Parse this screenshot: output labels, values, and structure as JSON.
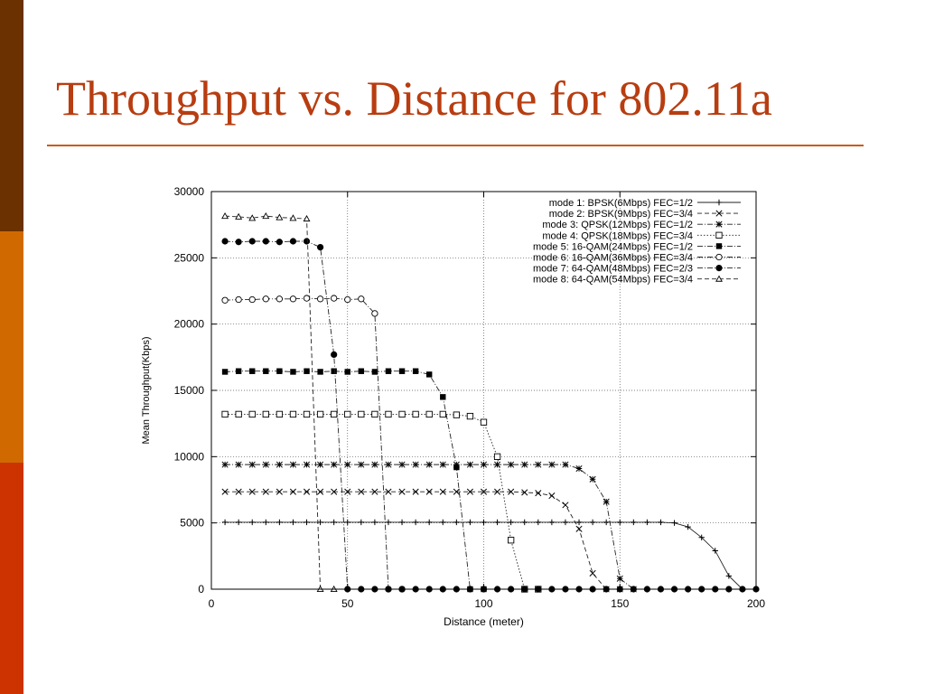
{
  "slide": {
    "title": "Throughput vs. Distance for 802.11a"
  },
  "colors": {
    "title": "#b83d10",
    "rule": "#c85a1a",
    "sidebar": [
      "#6b3100",
      "#d06a00",
      "#cc3300"
    ]
  },
  "chart_data": {
    "type": "line",
    "title": "",
    "xlabel": "Distance (meter)",
    "ylabel": "Mean Throughput(Kbps)",
    "xlim": [
      0,
      200
    ],
    "ylim": [
      0,
      30000
    ],
    "xticks": [
      0,
      50,
      100,
      150,
      200
    ],
    "yticks": [
      0,
      5000,
      10000,
      15000,
      20000,
      25000,
      30000
    ],
    "grid": true,
    "legend_position": "top-right",
    "series": [
      {
        "name": "mode 1: BPSK(6Mbps) FEC=1/2",
        "marker": "plus",
        "dash": "solid",
        "x": [
          5,
          10,
          15,
          20,
          25,
          30,
          35,
          40,
          45,
          50,
          55,
          60,
          65,
          70,
          75,
          80,
          85,
          90,
          95,
          100,
          105,
          110,
          115,
          120,
          125,
          130,
          135,
          140,
          145,
          150,
          155,
          160,
          165,
          170,
          175,
          180,
          185,
          190,
          195
        ],
        "y": [
          5050,
          5050,
          5050,
          5050,
          5050,
          5050,
          5050,
          5050,
          5050,
          5050,
          5050,
          5050,
          5050,
          5050,
          5050,
          5050,
          5050,
          5050,
          5050,
          5050,
          5050,
          5050,
          5050,
          5050,
          5050,
          5050,
          5050,
          5050,
          5050,
          5050,
          5050,
          5050,
          5050,
          5000,
          4700,
          3900,
          2900,
          1000,
          0
        ]
      },
      {
        "name": "mode 2: BPSK(9Mbps) FEC=3/4",
        "marker": "x",
        "dash": "dash",
        "x": [
          5,
          10,
          15,
          20,
          25,
          30,
          35,
          40,
          45,
          50,
          55,
          60,
          65,
          70,
          75,
          80,
          85,
          90,
          95,
          100,
          105,
          110,
          115,
          120,
          125,
          130,
          135,
          140,
          145,
          150
        ],
        "y": [
          7350,
          7350,
          7350,
          7350,
          7350,
          7350,
          7350,
          7350,
          7350,
          7350,
          7350,
          7350,
          7350,
          7350,
          7350,
          7350,
          7350,
          7350,
          7350,
          7350,
          7350,
          7350,
          7300,
          7250,
          7050,
          6350,
          4550,
          1200,
          0,
          0
        ]
      },
      {
        "name": "mode 3: QPSK(12Mbps) FEC=1/2",
        "marker": "asterisk",
        "dash": "dashdot",
        "x": [
          5,
          10,
          15,
          20,
          25,
          30,
          35,
          40,
          45,
          50,
          55,
          60,
          65,
          70,
          75,
          80,
          85,
          90,
          95,
          100,
          105,
          110,
          115,
          120,
          125,
          130,
          135,
          140,
          145,
          150,
          155
        ],
        "y": [
          9400,
          9400,
          9400,
          9400,
          9400,
          9400,
          9400,
          9400,
          9400,
          9400,
          9400,
          9400,
          9400,
          9400,
          9400,
          9400,
          9400,
          9400,
          9400,
          9400,
          9400,
          9400,
          9400,
          9400,
          9400,
          9400,
          9100,
          8300,
          6600,
          800,
          0
        ]
      },
      {
        "name": "mode 4: QPSK(18Mbps) FEC=3/4",
        "marker": "open-square",
        "dash": "dot",
        "x": [
          5,
          10,
          15,
          20,
          25,
          30,
          35,
          40,
          45,
          50,
          55,
          60,
          65,
          70,
          75,
          80,
          85,
          90,
          95,
          100,
          105,
          110,
          115,
          120
        ],
        "y": [
          13200,
          13200,
          13200,
          13200,
          13200,
          13200,
          13200,
          13200,
          13200,
          13200,
          13200,
          13200,
          13200,
          13200,
          13200,
          13200,
          13200,
          13150,
          13050,
          12600,
          10000,
          3700,
          0,
          0
        ]
      },
      {
        "name": "mode 5: 16-QAM(24Mbps) FEC=1/2",
        "marker": "filled-square",
        "dash": "dashdot",
        "x": [
          5,
          10,
          15,
          20,
          25,
          30,
          35,
          40,
          45,
          50,
          55,
          60,
          65,
          70,
          75,
          80,
          85,
          90,
          95,
          100
        ],
        "y": [
          16400,
          16450,
          16450,
          16450,
          16450,
          16400,
          16450,
          16400,
          16450,
          16400,
          16450,
          16400,
          16450,
          16450,
          16450,
          16200,
          14500,
          9200,
          0,
          0
        ]
      },
      {
        "name": "mode 6: 16-QAM(36Mbps) FEC=3/4",
        "marker": "open-circle",
        "dash": "dashdot",
        "x": [
          5,
          10,
          15,
          20,
          25,
          30,
          35,
          40,
          45,
          50,
          55,
          60,
          65,
          70
        ],
        "y": [
          21800,
          21850,
          21850,
          21900,
          21900,
          21900,
          21950,
          21900,
          21950,
          21850,
          21900,
          20800,
          0,
          0
        ]
      },
      {
        "name": "mode 7: 64-QAM(48Mbps) FEC=2/3",
        "marker": "filled-circle",
        "dash": "dashdot",
        "x": [
          5,
          10,
          15,
          20,
          25,
          30,
          35,
          40,
          45,
          50,
          55,
          60,
          65,
          70,
          75,
          80,
          85,
          90,
          95,
          100,
          105,
          110,
          115,
          120,
          125,
          130,
          135,
          140,
          145,
          150,
          155,
          160,
          165,
          170,
          175,
          180,
          185,
          190,
          195,
          200
        ],
        "y": [
          26250,
          26200,
          26250,
          26250,
          26200,
          26250,
          26250,
          25800,
          17700,
          0,
          0,
          0,
          0,
          0,
          0,
          0,
          0,
          0,
          0,
          0,
          0,
          0,
          0,
          0,
          0,
          0,
          0,
          0,
          0,
          0,
          0,
          0,
          0,
          0,
          0,
          0,
          0,
          0,
          0,
          0
        ]
      },
      {
        "name": "mode 8: 64-QAM(54Mbps) FEC=3/4",
        "marker": "open-triangle",
        "dash": "dash",
        "x": [
          5,
          10,
          15,
          20,
          25,
          30,
          35,
          40,
          45
        ],
        "y": [
          28150,
          28100,
          28000,
          28150,
          28050,
          28000,
          27950,
          0,
          0
        ]
      }
    ]
  }
}
